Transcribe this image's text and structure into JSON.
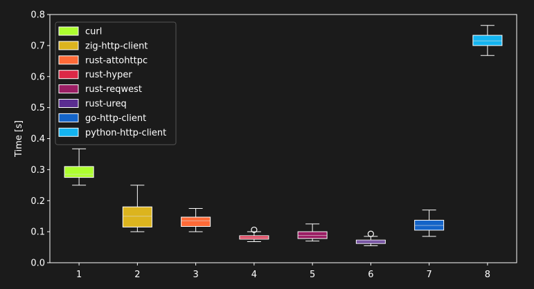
{
  "chart_data": {
    "type": "box",
    "xlabel": "",
    "ylabel": "Time [s]",
    "ylim": [
      0.0,
      0.8
    ],
    "yticks": [
      "0.0",
      "0.1",
      "0.2",
      "0.3",
      "0.4",
      "0.5",
      "0.6",
      "0.7",
      "0.8"
    ],
    "xticks": [
      "1",
      "2",
      "3",
      "4",
      "5",
      "6",
      "7",
      "8"
    ],
    "legend_position": "upper-left",
    "grid": false,
    "series": [
      {
        "name": "curl",
        "x": 1,
        "color": "#adff2f",
        "whisker_low": 0.25,
        "q1": 0.275,
        "median": 0.285,
        "q3": 0.31,
        "whisker_high": 0.367,
        "outliers": []
      },
      {
        "name": "zig-http-client",
        "x": 2,
        "color": "#dcb41e",
        "whisker_low": 0.1,
        "q1": 0.115,
        "median": 0.15,
        "q3": 0.18,
        "whisker_high": 0.25,
        "outliers": []
      },
      {
        "name": "rust-attohttpc",
        "x": 3,
        "color": "#ff6a37",
        "whisker_low": 0.1,
        "q1": 0.117,
        "median": 0.135,
        "q3": 0.147,
        "whisker_high": 0.175,
        "outliers": []
      },
      {
        "name": "rust-hyper",
        "x": 4,
        "color": "#dc2846",
        "whisker_low": 0.068,
        "q1": 0.076,
        "median": 0.081,
        "q3": 0.087,
        "whisker_high": 0.1,
        "outliers": [
          0.106
        ]
      },
      {
        "name": "rust-reqwest",
        "x": 5,
        "color": "#9b1e64",
        "whisker_low": 0.07,
        "q1": 0.078,
        "median": 0.088,
        "q3": 0.1,
        "whisker_high": 0.125,
        "outliers": []
      },
      {
        "name": "rust-ureq",
        "x": 6,
        "color": "#5a2d91",
        "whisker_low": 0.055,
        "q1": 0.062,
        "median": 0.067,
        "q3": 0.073,
        "whisker_high": 0.085,
        "outliers": [
          0.093
        ]
      },
      {
        "name": "go-http-client",
        "x": 7,
        "color": "#1464c8",
        "whisker_low": 0.085,
        "q1": 0.105,
        "median": 0.12,
        "q3": 0.137,
        "whisker_high": 0.17,
        "outliers": []
      },
      {
        "name": "python-http-client",
        "x": 8,
        "color": "#14b4f0",
        "whisker_low": 0.668,
        "q1": 0.7,
        "median": 0.715,
        "q3": 0.733,
        "whisker_high": 0.765,
        "outliers": []
      }
    ],
    "colors": {
      "background": "#1b1b1b",
      "axis": "#ffffff",
      "whisker": "#ffffff",
      "legend_background": "#1b1b1b",
      "legend_border": "#555555"
    }
  }
}
